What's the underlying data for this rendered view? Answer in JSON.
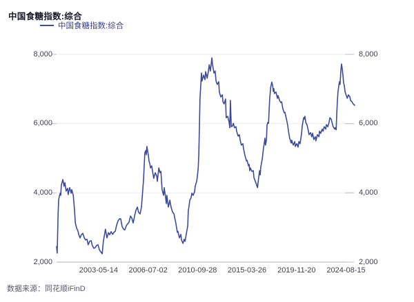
{
  "header": {
    "title": "中国食糖指数:综合"
  },
  "legend": {
    "label": "中国食糖指数:综合"
  },
  "footer": {
    "source": "数据来源：同花顺iFinD"
  },
  "colors": {
    "line": "#3b4a9e",
    "legend_text": "#3a4390",
    "title_text": "#18182b",
    "grid": "#eaeaf2",
    "axis": "#a9aeba",
    "tick": "#b7bcc8",
    "label_text": "#3f3f4d",
    "footer_text": "#5a5a6e",
    "background": "#ffffff"
  },
  "chart_data": {
    "type": "line",
    "title": "中国食糖指数:综合",
    "series_name": "中国食糖指数:综合",
    "xlabel": "",
    "ylabel": "",
    "ylim": [
      2000,
      8000
    ],
    "yticks": [
      2000,
      4000,
      6000,
      8000
    ],
    "ytick_labels": [
      "2,000",
      "4,000",
      "6,000",
      "8,000"
    ],
    "y_axis_sides": "both",
    "grid": "horizontal",
    "legend_position": "top-left",
    "xticks": [
      {
        "label": "2003-05-14",
        "t": 0.141
      },
      {
        "label": "2006-07-02",
        "t": 0.307
      },
      {
        "label": "2010-09-28",
        "t": 0.473
      },
      {
        "label": "2015-03-26",
        "t": 0.639
      },
      {
        "label": "2019-11-20",
        "t": 0.805
      },
      {
        "label": "2024-08-15",
        "t": 0.971
      }
    ],
    "points": [
      [
        0,
        2450
      ],
      [
        0.002,
        2260
      ],
      [
        0.005,
        3390
      ],
      [
        0.007,
        3790
      ],
      [
        0.009,
        3890
      ],
      [
        0.012,
        3990
      ],
      [
        0.014,
        3930
      ],
      [
        0.016,
        4230
      ],
      [
        0.021,
        4385
      ],
      [
        0.025,
        4190
      ],
      [
        0.028,
        4290
      ],
      [
        0.032,
        4050
      ],
      [
        0.037,
        4130
      ],
      [
        0.039,
        3950
      ],
      [
        0.044,
        4150
      ],
      [
        0.049,
        3990
      ],
      [
        0.051,
        4090
      ],
      [
        0.056,
        3930
      ],
      [
        0.06,
        3530
      ],
      [
        0.063,
        3130
      ],
      [
        0.067,
        2990
      ],
      [
        0.072,
        2890
      ],
      [
        0.074,
        2800
      ],
      [
        0.079,
        2700
      ],
      [
        0.083,
        2790
      ],
      [
        0.088,
        2830
      ],
      [
        0.093,
        2700
      ],
      [
        0.097,
        2640
      ],
      [
        0.102,
        2660
      ],
      [
        0.106,
        2500
      ],
      [
        0.111,
        2600
      ],
      [
        0.116,
        2620
      ],
      [
        0.12,
        2480
      ],
      [
        0.125,
        2400
      ],
      [
        0.13,
        2420
      ],
      [
        0.134,
        2480
      ],
      [
        0.139,
        2500
      ],
      [
        0.144,
        2350
      ],
      [
        0.148,
        2300
      ],
      [
        0.153,
        2240
      ],
      [
        0.157,
        2600
      ],
      [
        0.164,
        2950
      ],
      [
        0.169,
        2700
      ],
      [
        0.174,
        2850
      ],
      [
        0.178,
        2790
      ],
      [
        0.183,
        2880
      ],
      [
        0.188,
        2800
      ],
      [
        0.192,
        2855
      ],
      [
        0.197,
        2895
      ],
      [
        0.201,
        3050
      ],
      [
        0.206,
        3190
      ],
      [
        0.211,
        3250
      ],
      [
        0.215,
        3250
      ],
      [
        0.22,
        3030
      ],
      [
        0.225,
        2950
      ],
      [
        0.229,
        2930
      ],
      [
        0.234,
        3050
      ],
      [
        0.238,
        3100
      ],
      [
        0.243,
        3150
      ],
      [
        0.248,
        3330
      ],
      [
        0.252,
        3280
      ],
      [
        0.257,
        3130
      ],
      [
        0.262,
        3350
      ],
      [
        0.266,
        3490
      ],
      [
        0.271,
        3590
      ],
      [
        0.275,
        3440
      ],
      [
        0.28,
        3390
      ],
      [
        0.285,
        3600
      ],
      [
        0.287,
        3850
      ],
      [
        0.289,
        4050
      ],
      [
        0.292,
        4400
      ],
      [
        0.294,
        4800
      ],
      [
        0.296,
        5150
      ],
      [
        0.299,
        5220
      ],
      [
        0.301,
        5100
      ],
      [
        0.303,
        5340
      ],
      [
        0.306,
        5180
      ],
      [
        0.308,
        5080
      ],
      [
        0.31,
        4920
      ],
      [
        0.313,
        4840
      ],
      [
        0.315,
        4720
      ],
      [
        0.319,
        4780
      ],
      [
        0.324,
        4520
      ],
      [
        0.326,
        4420
      ],
      [
        0.331,
        4580
      ],
      [
        0.336,
        4480
      ],
      [
        0.338,
        4330
      ],
      [
        0.343,
        4720
      ],
      [
        0.347,
        4580
      ],
      [
        0.35,
        4620
      ],
      [
        0.354,
        4090
      ],
      [
        0.359,
        3930
      ],
      [
        0.361,
        4150
      ],
      [
        0.366,
        3850
      ],
      [
        0.368,
        3690
      ],
      [
        0.37,
        3930
      ],
      [
        0.373,
        3730
      ],
      [
        0.375,
        3590
      ],
      [
        0.38,
        3790
      ],
      [
        0.382,
        3690
      ],
      [
        0.384,
        3590
      ],
      [
        0.389,
        3450
      ],
      [
        0.394,
        3390
      ],
      [
        0.396,
        3290
      ],
      [
        0.4,
        3130
      ],
      [
        0.405,
        2860
      ],
      [
        0.407,
        2890
      ],
      [
        0.412,
        2700
      ],
      [
        0.417,
        2800
      ],
      [
        0.419,
        2640
      ],
      [
        0.424,
        2540
      ],
      [
        0.428,
        2660
      ],
      [
        0.431,
        2600
      ],
      [
        0.435,
        2800
      ],
      [
        0.44,
        3050
      ],
      [
        0.442,
        3490
      ],
      [
        0.444,
        3590
      ],
      [
        0.447,
        3790
      ],
      [
        0.451,
        3850
      ],
      [
        0.454,
        3990
      ],
      [
        0.458,
        3930
      ],
      [
        0.463,
        4030
      ],
      [
        0.465,
        4190
      ],
      [
        0.47,
        4330
      ],
      [
        0.472,
        4450
      ],
      [
        0.475,
        4700
      ],
      [
        0.477,
        5100
      ],
      [
        0.479,
        5800
      ],
      [
        0.481,
        6700
      ],
      [
        0.484,
        7150
      ],
      [
        0.486,
        7460
      ],
      [
        0.488,
        7230
      ],
      [
        0.493,
        7400
      ],
      [
        0.498,
        7270
      ],
      [
        0.5,
        7500
      ],
      [
        0.505,
        7310
      ],
      [
        0.509,
        7500
      ],
      [
        0.512,
        7700
      ],
      [
        0.516,
        7520
      ],
      [
        0.521,
        7900
      ],
      [
        0.523,
        7720
      ],
      [
        0.528,
        7460
      ],
      [
        0.532,
        7520
      ],
      [
        0.535,
        7230
      ],
      [
        0.539,
        7130
      ],
      [
        0.544,
        7210
      ],
      [
        0.546,
        6910
      ],
      [
        0.551,
        6770
      ],
      [
        0.556,
        6830
      ],
      [
        0.558,
        6630
      ],
      [
        0.562,
        6570
      ],
      [
        0.567,
        6710
      ],
      [
        0.569,
        6170
      ],
      [
        0.574,
        6210
      ],
      [
        0.579,
        6030
      ],
      [
        0.581,
        5880
      ],
      [
        0.583,
        6670
      ],
      [
        0.586,
        5910
      ],
      [
        0.59,
        5930
      ],
      [
        0.593,
        6010
      ],
      [
        0.597,
        5880
      ],
      [
        0.602,
        5910
      ],
      [
        0.604,
        5780
      ],
      [
        0.609,
        5640
      ],
      [
        0.613,
        5680
      ],
      [
        0.616,
        5520
      ],
      [
        0.62,
        5380
      ],
      [
        0.625,
        5420
      ],
      [
        0.627,
        5280
      ],
      [
        0.632,
        5080
      ],
      [
        0.637,
        4920
      ],
      [
        0.639,
        4940
      ],
      [
        0.644,
        4780
      ],
      [
        0.646,
        4820
      ],
      [
        0.648,
        4640
      ],
      [
        0.65,
        4720
      ],
      [
        0.655,
        4620
      ],
      [
        0.66,
        4640
      ],
      [
        0.662,
        4440
      ],
      [
        0.667,
        4330
      ],
      [
        0.671,
        4230
      ],
      [
        0.674,
        4150
      ],
      [
        0.678,
        4440
      ],
      [
        0.681,
        4640
      ],
      [
        0.683,
        4520
      ],
      [
        0.685,
        4740
      ],
      [
        0.69,
        4980
      ],
      [
        0.692,
        5120
      ],
      [
        0.694,
        5280
      ],
      [
        0.697,
        5450
      ],
      [
        0.699,
        5580
      ],
      [
        0.701,
        5380
      ],
      [
        0.704,
        5520
      ],
      [
        0.706,
        5940
      ],
      [
        0.708,
        6030
      ],
      [
        0.711,
        6010
      ],
      [
        0.713,
        6370
      ],
      [
        0.715,
        6730
      ],
      [
        0.718,
        7030
      ],
      [
        0.722,
        7200
      ],
      [
        0.725,
        7100
      ],
      [
        0.727,
        6930
      ],
      [
        0.729,
        7010
      ],
      [
        0.731,
        6870
      ],
      [
        0.736,
        6910
      ],
      [
        0.741,
        6730
      ],
      [
        0.743,
        6810
      ],
      [
        0.748,
        6670
      ],
      [
        0.752,
        6610
      ],
      [
        0.755,
        6630
      ],
      [
        0.759,
        6430
      ],
      [
        0.764,
        6310
      ],
      [
        0.766,
        6330
      ],
      [
        0.771,
        6130
      ],
      [
        0.775,
        5970
      ],
      [
        0.778,
        5780
      ],
      [
        0.782,
        5580
      ],
      [
        0.787,
        5440
      ],
      [
        0.789,
        5520
      ],
      [
        0.794,
        5380
      ],
      [
        0.799,
        5480
      ],
      [
        0.801,
        5340
      ],
      [
        0.806,
        5420
      ],
      [
        0.81,
        5320
      ],
      [
        0.813,
        5480
      ],
      [
        0.817,
        5420
      ],
      [
        0.822,
        5720
      ],
      [
        0.824,
        5930
      ],
      [
        0.829,
        6170
      ],
      [
        0.831,
        6130
      ],
      [
        0.833,
        6210
      ],
      [
        0.836,
        6030
      ],
      [
        0.84,
        5970
      ],
      [
        0.845,
        5780
      ],
      [
        0.847,
        5680
      ],
      [
        0.852,
        5740
      ],
      [
        0.856,
        5620
      ],
      [
        0.859,
        5720
      ],
      [
        0.863,
        5540
      ],
      [
        0.868,
        5620
      ],
      [
        0.87,
        5500
      ],
      [
        0.875,
        5680
      ],
      [
        0.88,
        5620
      ],
      [
        0.882,
        5780
      ],
      [
        0.886,
        5720
      ],
      [
        0.891,
        5840
      ],
      [
        0.894,
        5780
      ],
      [
        0.898,
        5910
      ],
      [
        0.903,
        5840
      ],
      [
        0.905,
        5970
      ],
      [
        0.91,
        5910
      ],
      [
        0.914,
        6030
      ],
      [
        0.917,
        6170
      ],
      [
        0.921,
        6130
      ],
      [
        0.926,
        5970
      ],
      [
        0.928,
        5910
      ],
      [
        0.933,
        5840
      ],
      [
        0.935,
        5880
      ],
      [
        0.938,
        5820
      ],
      [
        0.94,
        6310
      ],
      [
        0.942,
        6630
      ],
      [
        0.944,
        6910
      ],
      [
        0.947,
        7110
      ],
      [
        0.949,
        7210
      ],
      [
        0.951,
        7130
      ],
      [
        0.954,
        7560
      ],
      [
        0.956,
        7720
      ],
      [
        0.958,
        7600
      ],
      [
        0.961,
        7360
      ],
      [
        0.963,
        7170
      ],
      [
        0.965,
        7110
      ],
      [
        0.968,
        6910
      ],
      [
        0.972,
        6810
      ],
      [
        0.975,
        6730
      ],
      [
        0.979,
        6830
      ],
      [
        0.984,
        6770
      ],
      [
        0.986,
        6670
      ],
      [
        0.991,
        6630
      ],
      [
        0.995,
        6570
      ],
      [
        1,
        6530
      ]
    ]
  }
}
